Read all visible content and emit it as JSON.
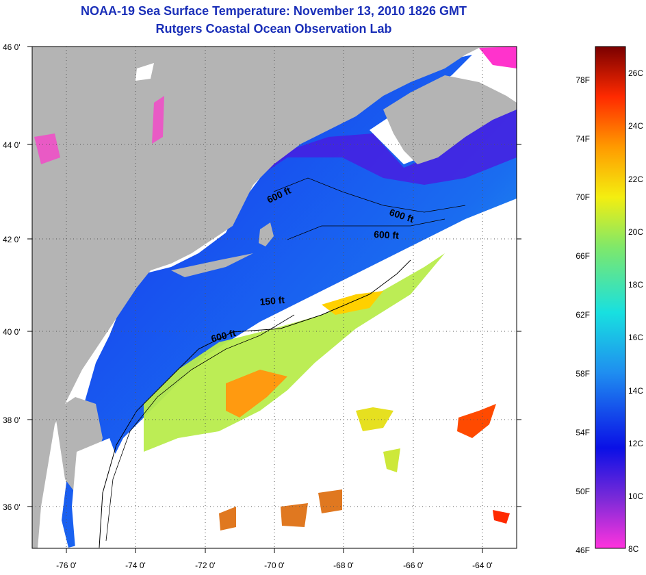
{
  "title": "NOAA-19 Sea Surface Temperature:  November 13, 2010 1826 GMT",
  "subtitle": "Rutgers Coastal Ocean Observation Lab",
  "lon_ticks": [
    "-76 0'",
    "-74 0'",
    "-72 0'",
    "-70 0'",
    "-68 0'",
    "-66 0'",
    "-64 0'"
  ],
  "lat_ticks": [
    "46 0'",
    "44 0'",
    "42 0'",
    "40 0'",
    "38 0'",
    "36 0'"
  ],
  "contour_labels": [
    "600 ft",
    "600 ft",
    "600 ft",
    "150 ft",
    "600 ft"
  ],
  "colorbar": {
    "fahrenheit": [
      "78F",
      "74F",
      "70F",
      "66F",
      "62F",
      "58F",
      "54F",
      "50F",
      "46F"
    ],
    "celsius": [
      "26C",
      "24C",
      "22C",
      "20C",
      "18C",
      "16C",
      "14C",
      "12C",
      "10C",
      "8C"
    ]
  },
  "colors": {
    "land": "#b4b4b4",
    "title": "#1a2fb8",
    "cold": "#ff33cc",
    "cool": "#0a10e6",
    "mid": "#1ad9e6",
    "warm": "#e6f013",
    "hot": "#ff7f00"
  }
}
